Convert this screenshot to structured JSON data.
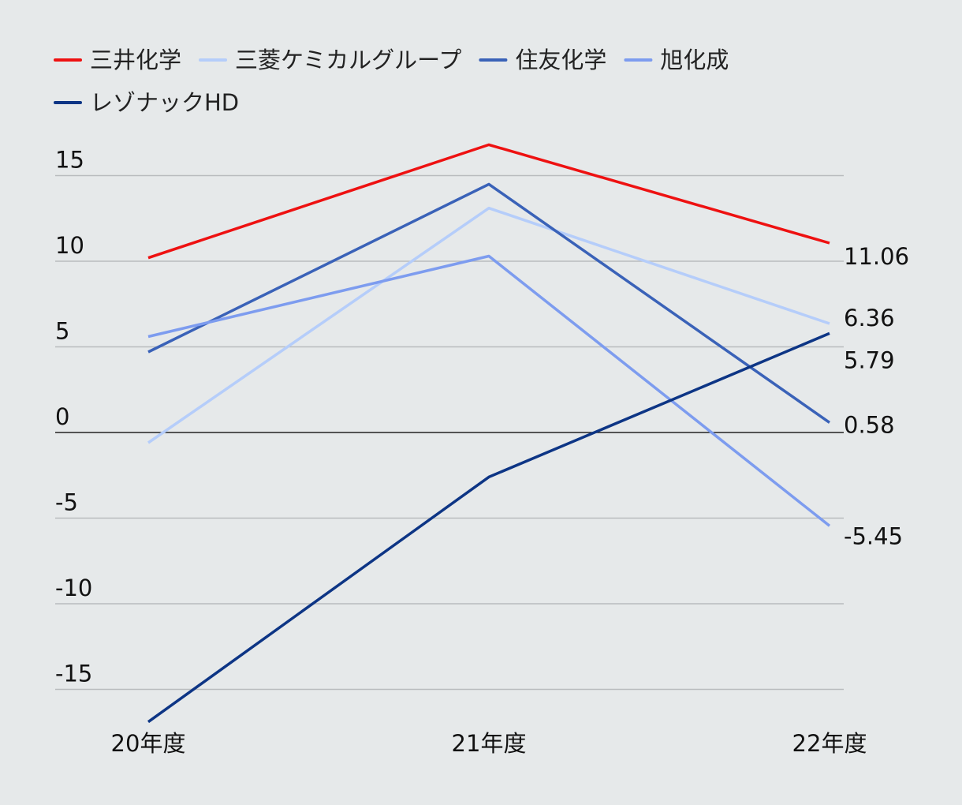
{
  "chart_data": {
    "type": "line",
    "title": "",
    "xlabel": "",
    "ylabel": "",
    "categories": [
      "20年度",
      "21年度",
      "22年度"
    ],
    "ylim": [
      -17,
      17
    ],
    "yticks": [
      15,
      10,
      5,
      0,
      -5,
      -10,
      -15
    ],
    "ytick_labels": [
      "15",
      "10",
      "5",
      "0",
      "-5",
      "-10",
      "-15"
    ],
    "grid": true,
    "legend_position": "top-left",
    "series": [
      {
        "name": "三井化学",
        "color": "#ee1111",
        "values": [
          10.2,
          16.8,
          11.06
        ],
        "end_label": "11.06"
      },
      {
        "name": "三菱ケミカルグループ",
        "color": "#b5cdfa",
        "values": [
          -0.6,
          13.1,
          6.36
        ],
        "end_label": "6.36"
      },
      {
        "name": "住友化学",
        "color": "#3a62b8",
        "values": [
          4.7,
          14.5,
          0.58
        ],
        "end_label": "0.58"
      },
      {
        "name": "旭化成",
        "color": "#7d9cef",
        "values": [
          5.6,
          10.3,
          -5.45
        ],
        "end_label": "-5.45"
      },
      {
        "name": "レゾナックHD",
        "color": "#0d3585",
        "values": [
          -16.9,
          -2.6,
          5.79
        ],
        "end_label": "5.79"
      }
    ]
  }
}
